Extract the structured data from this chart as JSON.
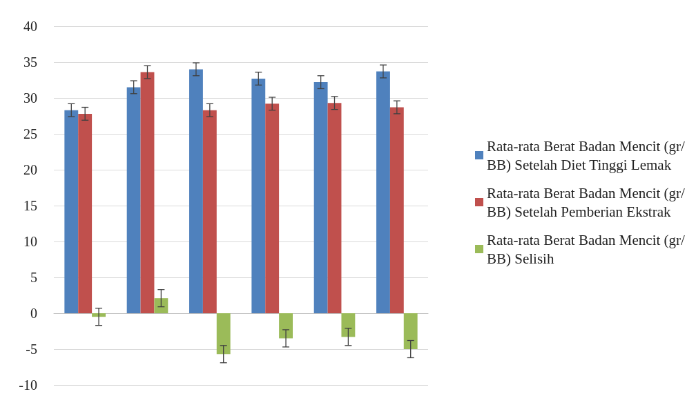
{
  "chart_data": {
    "type": "bar",
    "categories": [
      null,
      null,
      null,
      null,
      null,
      null
    ],
    "series": [
      {
        "name": "Rata-rata Berat Badan Mencit (gr/BB) Setelah Diet Tinggi Lemak",
        "color": "#4f81bd",
        "values": [
          28.3,
          31.5,
          34.0,
          32.7,
          32.2,
          33.7
        ],
        "errors": [
          0.9,
          0.9,
          0.9,
          0.9,
          0.9,
          0.9
        ]
      },
      {
        "name": "Rata-rata Berat Badan Mencit (gr/BB) Setelah Pemberian Ekstrak",
        "color": "#c0504d",
        "values": [
          27.8,
          33.6,
          28.3,
          29.2,
          29.3,
          28.7
        ],
        "errors": [
          0.9,
          0.9,
          0.9,
          0.9,
          0.9,
          0.9
        ]
      },
      {
        "name": "Rata-rata Berat Badan Mencit (gr/BB) Selisih",
        "color": "#9bbb59",
        "values": [
          -0.5,
          2.1,
          -5.7,
          -3.5,
          -3.3,
          -5.0
        ],
        "errors": [
          1.2,
          1.2,
          1.2,
          1.2,
          1.2,
          1.2
        ]
      }
    ],
    "ylim": [
      -10,
      40
    ],
    "yticks": [
      -10,
      -5,
      0,
      5,
      10,
      15,
      20,
      25,
      30,
      35,
      40
    ],
    "grid": "y",
    "legend": "right"
  }
}
